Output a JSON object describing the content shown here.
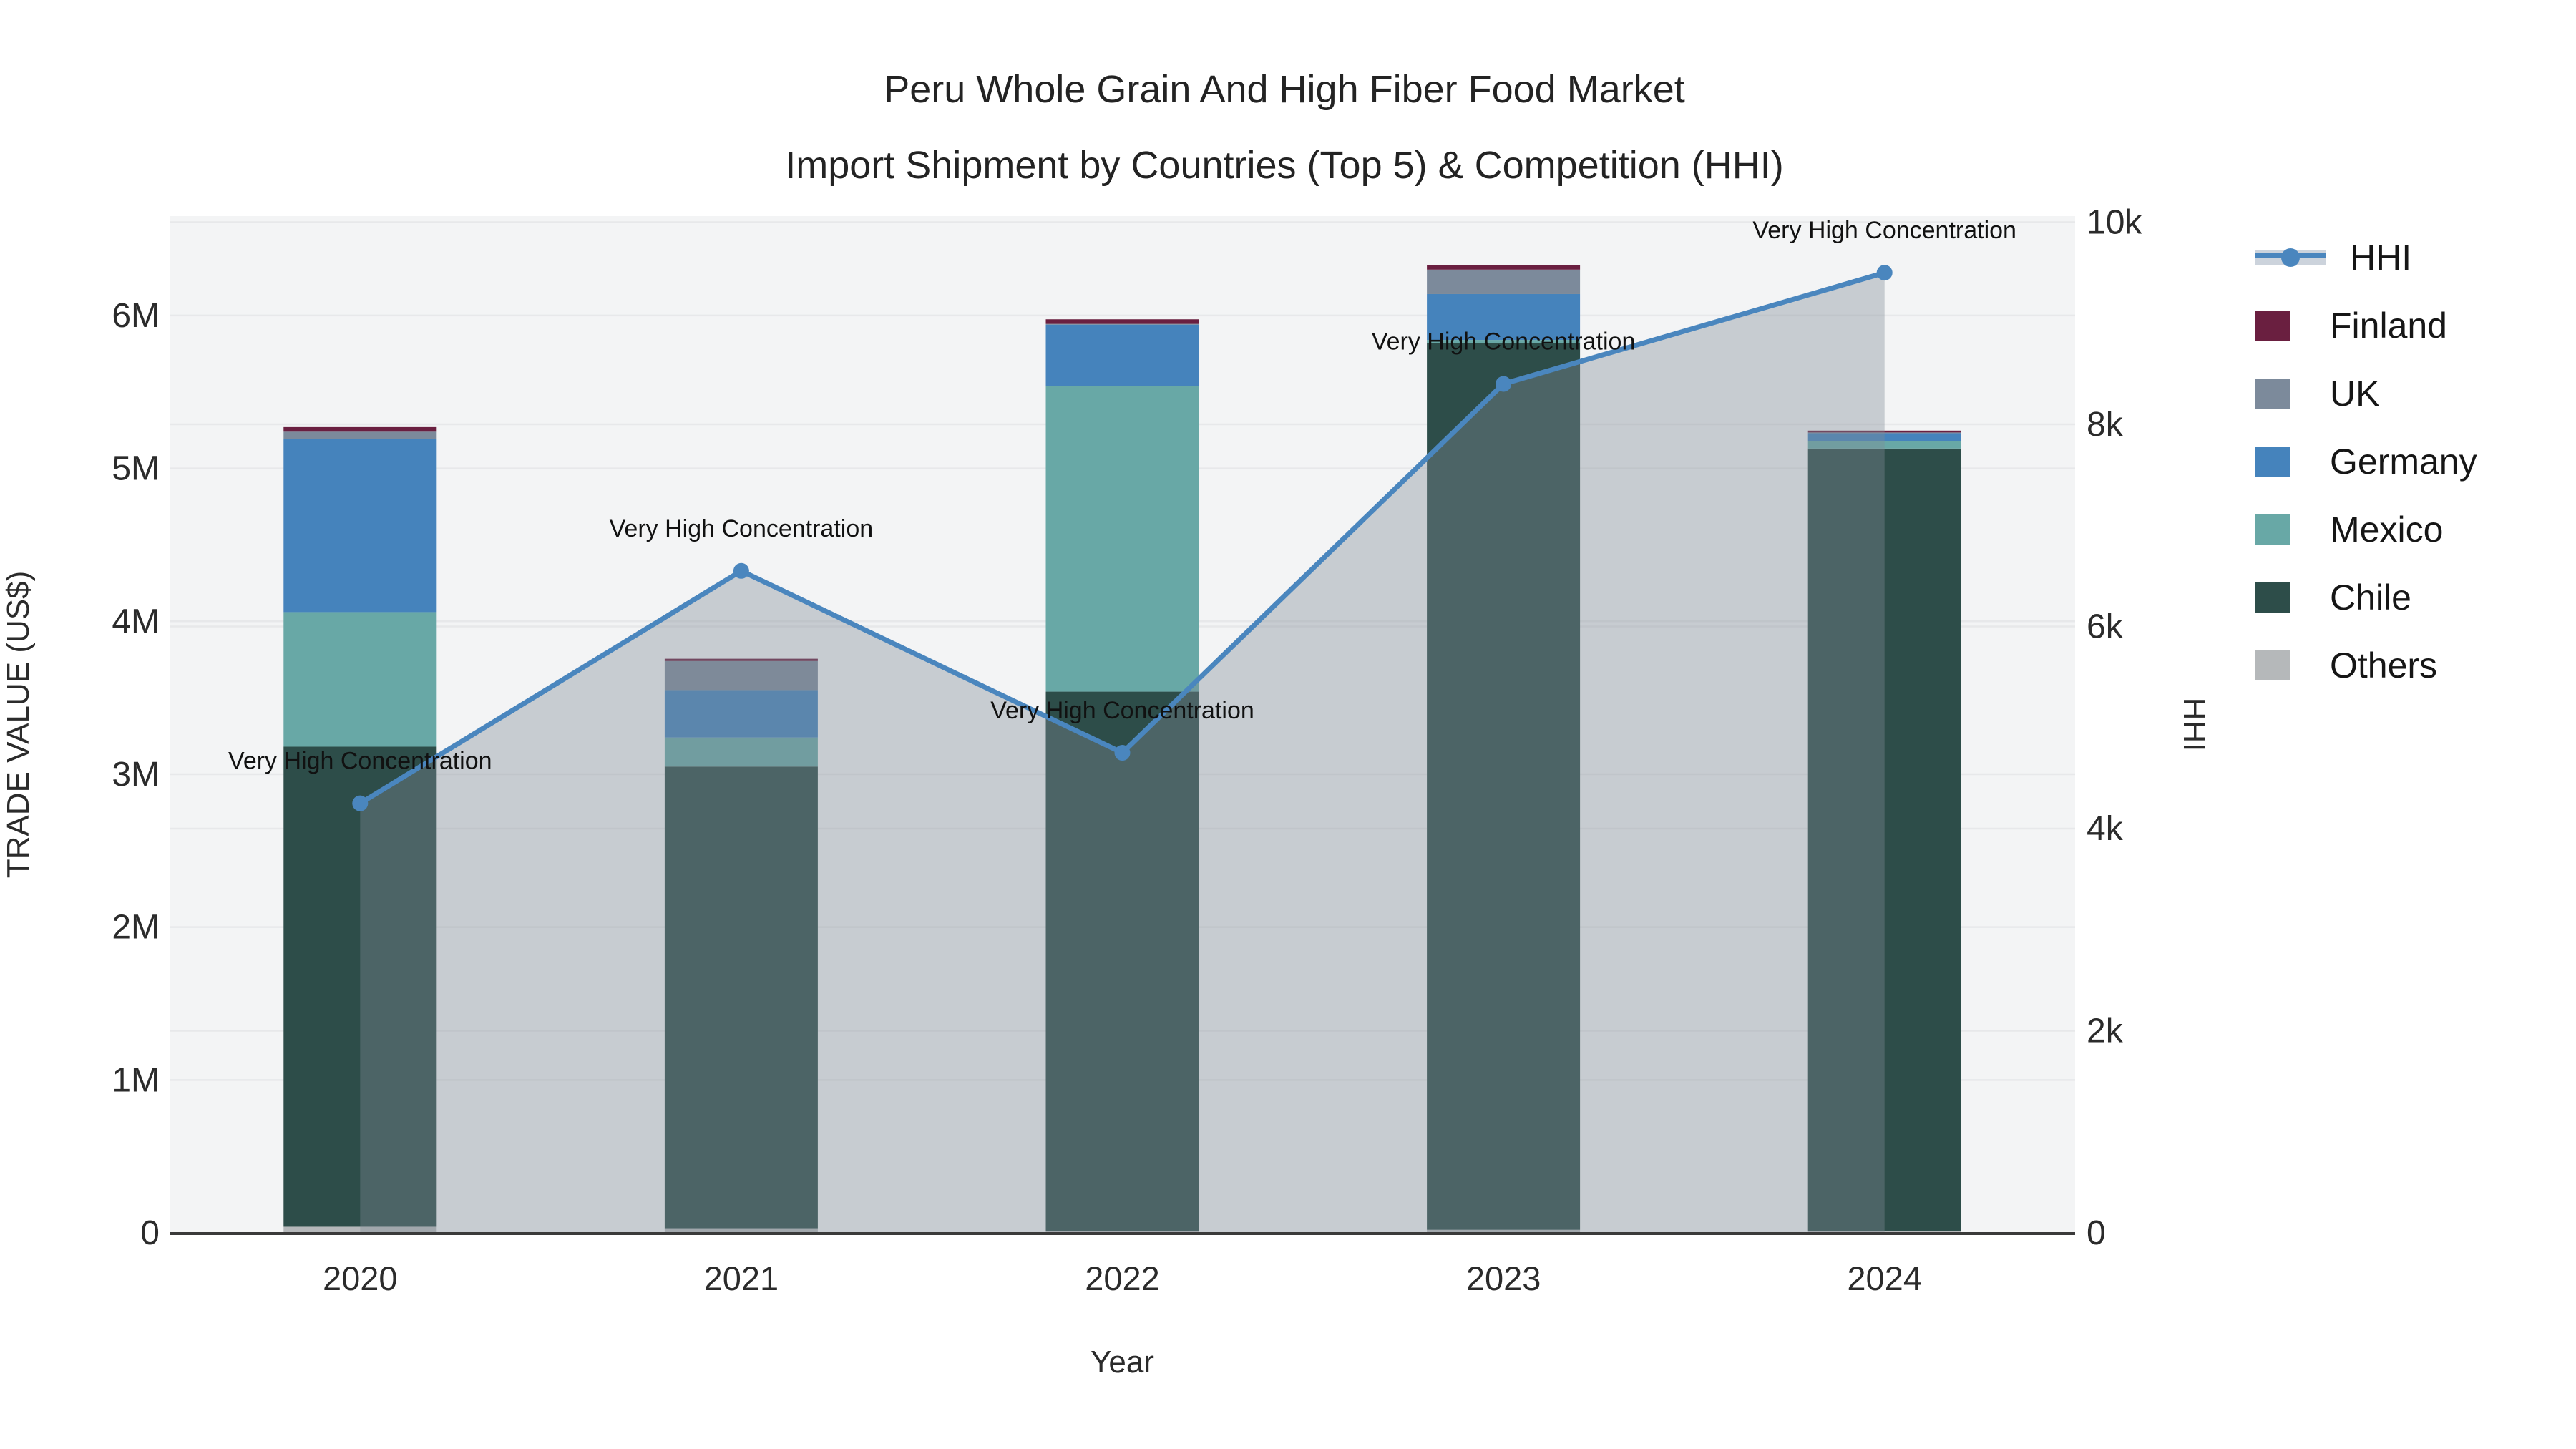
{
  "chart_data": {
    "type": "bar",
    "title_line1": "Peru Whole Grain And High Fiber Food Market",
    "title_line2": "Import Shipment by Countries (Top 5) & Competition (HHI)",
    "categories": [
      "2020",
      "2021",
      "2022",
      "2023",
      "2024"
    ],
    "bar_series": [
      {
        "name": "Others",
        "color": "#b5b8ba",
        "values_million_usd": [
          0.04,
          0.03,
          0.01,
          0.02,
          0.01
        ]
      },
      {
        "name": "Chile",
        "color": "#2d4d49",
        "values_million_usd": [
          3.14,
          3.02,
          3.53,
          5.8,
          5.12
        ]
      },
      {
        "name": "Mexico",
        "color": "#68a8a6",
        "values_million_usd": [
          0.88,
          0.19,
          2.0,
          0.02,
          0.05
        ]
      },
      {
        "name": "Germany",
        "color": "#4583bc",
        "values_million_usd": [
          1.13,
          0.31,
          0.4,
          0.3,
          0.05
        ]
      },
      {
        "name": "UK",
        "color": "#7c8a9b",
        "values_million_usd": [
          0.05,
          0.19,
          0.005,
          0.16,
          0.005
        ]
      },
      {
        "name": "Finland",
        "color": "#6a1f40",
        "values_million_usd": [
          0.03,
          0.015,
          0.03,
          0.03,
          0.012
        ]
      }
    ],
    "line_series": {
      "name": "HHI",
      "color": "#4a86be",
      "area_fill": "rgba(130,139,151,0.38)",
      "values": [
        4250,
        6550,
        4750,
        8400,
        9500
      ]
    },
    "annotation_text": "Very High Concentration",
    "xlabel": "Year",
    "ylabel_left": "TRADE VALUE (US$)",
    "ylabel_right": "HHI",
    "yticks_left": [
      {
        "v": 0,
        "label": "0"
      },
      {
        "v": 1,
        "label": "1M"
      },
      {
        "v": 2,
        "label": "2M"
      },
      {
        "v": 3,
        "label": "3M"
      },
      {
        "v": 4,
        "label": "4M"
      },
      {
        "v": 5,
        "label": "5M"
      },
      {
        "v": 6,
        "label": "6M"
      }
    ],
    "yticks_right": [
      {
        "v": 0,
        "label": "0"
      },
      {
        "v": 2000,
        "label": "2k"
      },
      {
        "v": 4000,
        "label": "4k"
      },
      {
        "v": 6000,
        "label": "6k"
      },
      {
        "v": 8000,
        "label": "8k"
      },
      {
        "v": 10000,
        "label": "10k"
      }
    ],
    "ylim_left": [
      0,
      6.65
    ],
    "ylim_right": [
      0,
      10060
    ],
    "grid": true,
    "legend_position": "right",
    "legend": [
      {
        "label": "HHI",
        "type": "line",
        "color": "#4a86be",
        "band": "#ccd3dc"
      },
      {
        "label": "Finland",
        "type": "swatch",
        "color": "#6a1f40"
      },
      {
        "label": "UK",
        "type": "swatch",
        "color": "#7c8a9b"
      },
      {
        "label": "Germany",
        "type": "swatch",
        "color": "#4583bc"
      },
      {
        "label": "Mexico",
        "type": "swatch",
        "color": "#68a8a6"
      },
      {
        "label": "Chile",
        "type": "swatch",
        "color": "#2d4d49"
      },
      {
        "label": "Others",
        "type": "swatch",
        "color": "#b5b8ba"
      }
    ],
    "colors": {
      "plot_bg": "#f3f4f5",
      "grid": "#e7e8ea",
      "axis_line": "#3a3a3a",
      "tick_text": "#2b2b2b",
      "annotation_text": "#111111"
    }
  }
}
